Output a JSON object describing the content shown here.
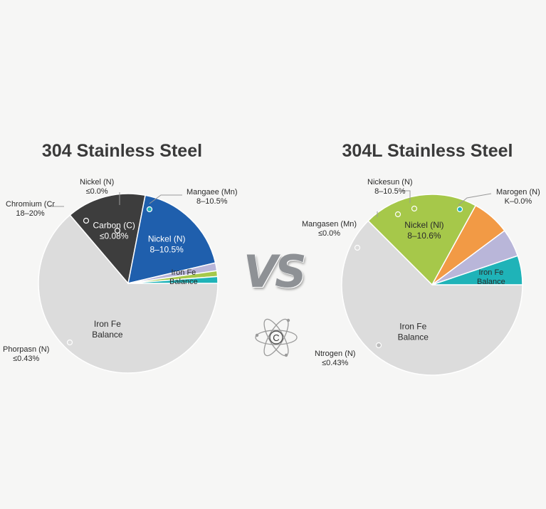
{
  "chart_data": [
    {
      "type": "pie",
      "title": "304 Stainless Steel",
      "slices": [
        {
          "label": "Iron Fe",
          "sub": "Balance",
          "value": 62.5,
          "color": "#dcdcdc",
          "label_color": "#2a2a2a",
          "inside": true
        },
        {
          "label": "Phorpasn (N)",
          "sub": "≤0.43%",
          "value": 0.0,
          "color": "#ffffff",
          "label_color": "#2a2a2a",
          "inside": false
        },
        {
          "label": "Carbon (C)",
          "sub": "≤0.08%",
          "value": 14.0,
          "color": "#3d3d3d",
          "label_color": "#ffffff",
          "inside": true
        },
        {
          "label": "Nickel (N)",
          "sub": "8–10.5%",
          "value": 17.9,
          "color": "#1f5fad",
          "label_color": "#ffffff",
          "inside": true
        },
        {
          "label": "Chromium (Cr",
          "sub": "18–20%",
          "value": 0.0,
          "color": "#ffffff",
          "label_color": "#2a2a2a",
          "inside": false
        },
        {
          "label": "",
          "sub": "",
          "value": 1.4,
          "color": "#b9b6d9",
          "label_color": "#2a2a2a",
          "inside": false
        },
        {
          "label": "Nickel (N)",
          "sub": "≤0.0%",
          "value": 1.0,
          "color": "#a6c84a",
          "label_color": "#2a2a2a",
          "inside": false
        },
        {
          "label": "",
          "sub": "",
          "value": 1.2,
          "color": "#1fb3b8",
          "label_color": "#2a2a2a",
          "inside": false
        },
        {
          "label": "Mangaee (Mn)",
          "sub": "8–10.5%",
          "value": 0.0,
          "color": "#ffffff",
          "label_color": "#2a2a2a",
          "inside": false
        },
        {
          "label": "Iron Fe",
          "sub": "Balance",
          "value": 0.0,
          "color": "#dcdcdc",
          "label_color": "#2a2a2a",
          "inside": false
        }
      ]
    },
    {
      "type": "pie",
      "title": "304L Stainless Steel",
      "slices": [
        {
          "label": "Iron Fe",
          "sub": "Balance",
          "value": 62.5,
          "color": "#dcdcdc",
          "label_color": "#2a2a2a",
          "inside": true
        },
        {
          "label": "Ntrogen (N)",
          "sub": "≤0.43%",
          "value": 0.0,
          "color": "#ffffff",
          "label_color": "#2a2a2a",
          "inside": false
        },
        {
          "label": "Nickel (Nl)",
          "sub": "8–10.6%",
          "value": 20.5,
          "color": "#a6c84a",
          "label_color": "#2a2a2a",
          "inside": true
        },
        {
          "label": "Mangasen (Mn)",
          "sub": "≤0.0%",
          "value": 6.8,
          "color": "#f29a45",
          "label_color": "#2a2a2a",
          "inside": false
        },
        {
          "label": "Nickesun (N)",
          "sub": "8–10.5%",
          "value": 5.0,
          "color": "#b9b6d9",
          "label_color": "#2a2a2a",
          "inside": false
        },
        {
          "label": "",
          "sub": "",
          "value": 5.2,
          "color": "#1fb3b8",
          "label_color": "#2a2a2a",
          "inside": false
        },
        {
          "label": "Marogen (N)",
          "sub": "K–0.0%",
          "value": 0.0,
          "color": "#ffffff",
          "label_color": "#2a2a2a",
          "inside": false
        },
        {
          "label": "Iron Fe",
          "sub": "Balance",
          "value": 0.0,
          "color": "#dcdcdc",
          "label_color": "#2a2a2a",
          "inside": false
        }
      ]
    }
  ],
  "labels": {
    "left_iron_upper": {
      "line1": "Iron Fe",
      "line2": "Balance"
    },
    "left_nickel_top": {
      "line1": "Nickel (N)",
      "line2": "≤0.0%"
    },
    "left_manganese": {
      "line1": "Mangaee (Mn)",
      "line2": "8–10.5%"
    },
    "left_chromium": {
      "line1": "Chromium (Cr",
      "line2": "18–20%"
    },
    "left_phosphorus": {
      "line1": "Phorpasn (N)",
      "line2": "≤0.43%"
    },
    "right_nickel_top": {
      "line1": "Nickesun (N)",
      "line2": "8–10.5%"
    },
    "right_nitrogen_top": {
      "line1": "Marogen (N)",
      "line2": "K–0.0%"
    },
    "right_manganese": {
      "line1": "Mangasen (Mn)",
      "line2": "≤0.0%"
    },
    "right_nitrogen_bottom": {
      "line1": "Ntrogen (N)",
      "line2": "≤0.43%"
    },
    "right_iron_upper": {
      "line1": "Iron Fe",
      "line2": "Balance"
    }
  },
  "center": {
    "vs_text": "VS",
    "atom_symbol": "C"
  },
  "colors": {
    "background": "#f6f6f5",
    "iron": "#dcdcdc",
    "carbon": "#3d3d3d",
    "nickel_blue": "#1f5fad",
    "green": "#a6c84a",
    "teal": "#1fb3b8",
    "lavender": "#b9b6d9",
    "orange": "#f29a45"
  }
}
